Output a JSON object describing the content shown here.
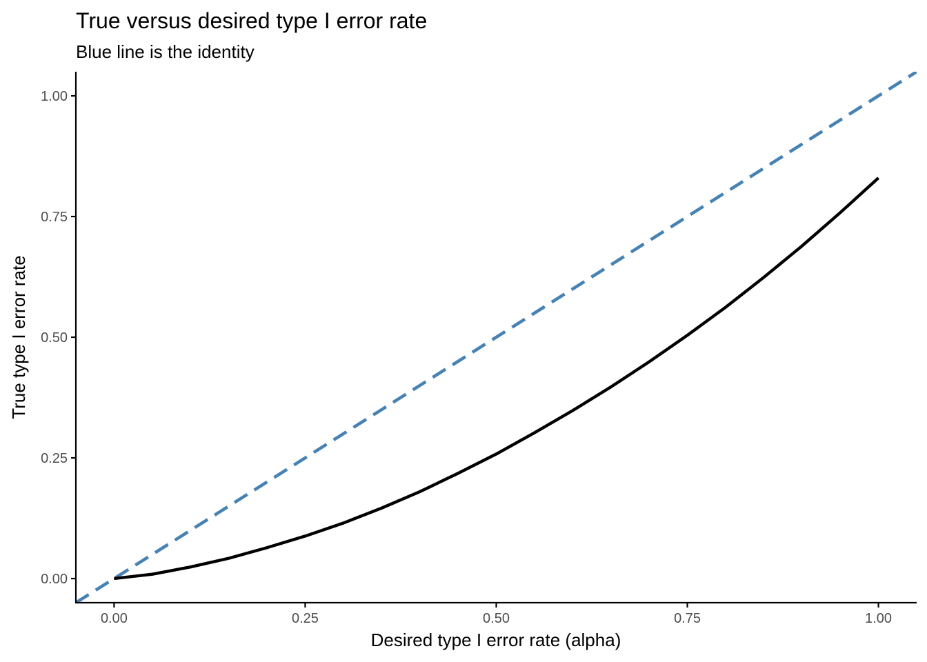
{
  "chart_data": {
    "type": "line",
    "title": "True versus desired type I error rate",
    "subtitle": "Blue line is the identity",
    "xlabel": "Desired type I error rate (alpha)",
    "ylabel": "True type I error rate",
    "xlim": [
      -0.05,
      1.05
    ],
    "ylim": [
      -0.05,
      1.05
    ],
    "x_ticks": [
      0,
      0.25,
      0.5,
      0.75,
      1
    ],
    "x_tick_labels": [
      "0.00",
      "0.25",
      "0.50",
      "0.75",
      "1.00"
    ],
    "y_ticks": [
      0,
      0.25,
      0.5,
      0.75,
      1
    ],
    "y_tick_labels": [
      "0.00",
      "0.25",
      "0.50",
      "0.75",
      "1.00"
    ],
    "grid": false,
    "series": [
      {
        "style": "solid",
        "color": "#000000",
        "x": [
          0,
          0.05,
          0.1,
          0.15,
          0.2,
          0.25,
          0.3,
          0.35,
          0.4,
          0.45,
          0.5,
          0.55,
          0.6,
          0.65,
          0.7,
          0.75,
          0.8,
          0.85,
          0.9,
          0.95,
          1.0
        ],
        "y": [
          0,
          0.009,
          0.024,
          0.042,
          0.064,
          0.088,
          0.115,
          0.146,
          0.18,
          0.218,
          0.258,
          0.302,
          0.348,
          0.397,
          0.449,
          0.504,
          0.562,
          0.624,
          0.689,
          0.758,
          0.83
        ]
      },
      {
        "style": "dashed",
        "color": "#4682B4",
        "x": [
          -0.05,
          1.05
        ],
        "y": [
          -0.05,
          1.05
        ]
      }
    ]
  }
}
